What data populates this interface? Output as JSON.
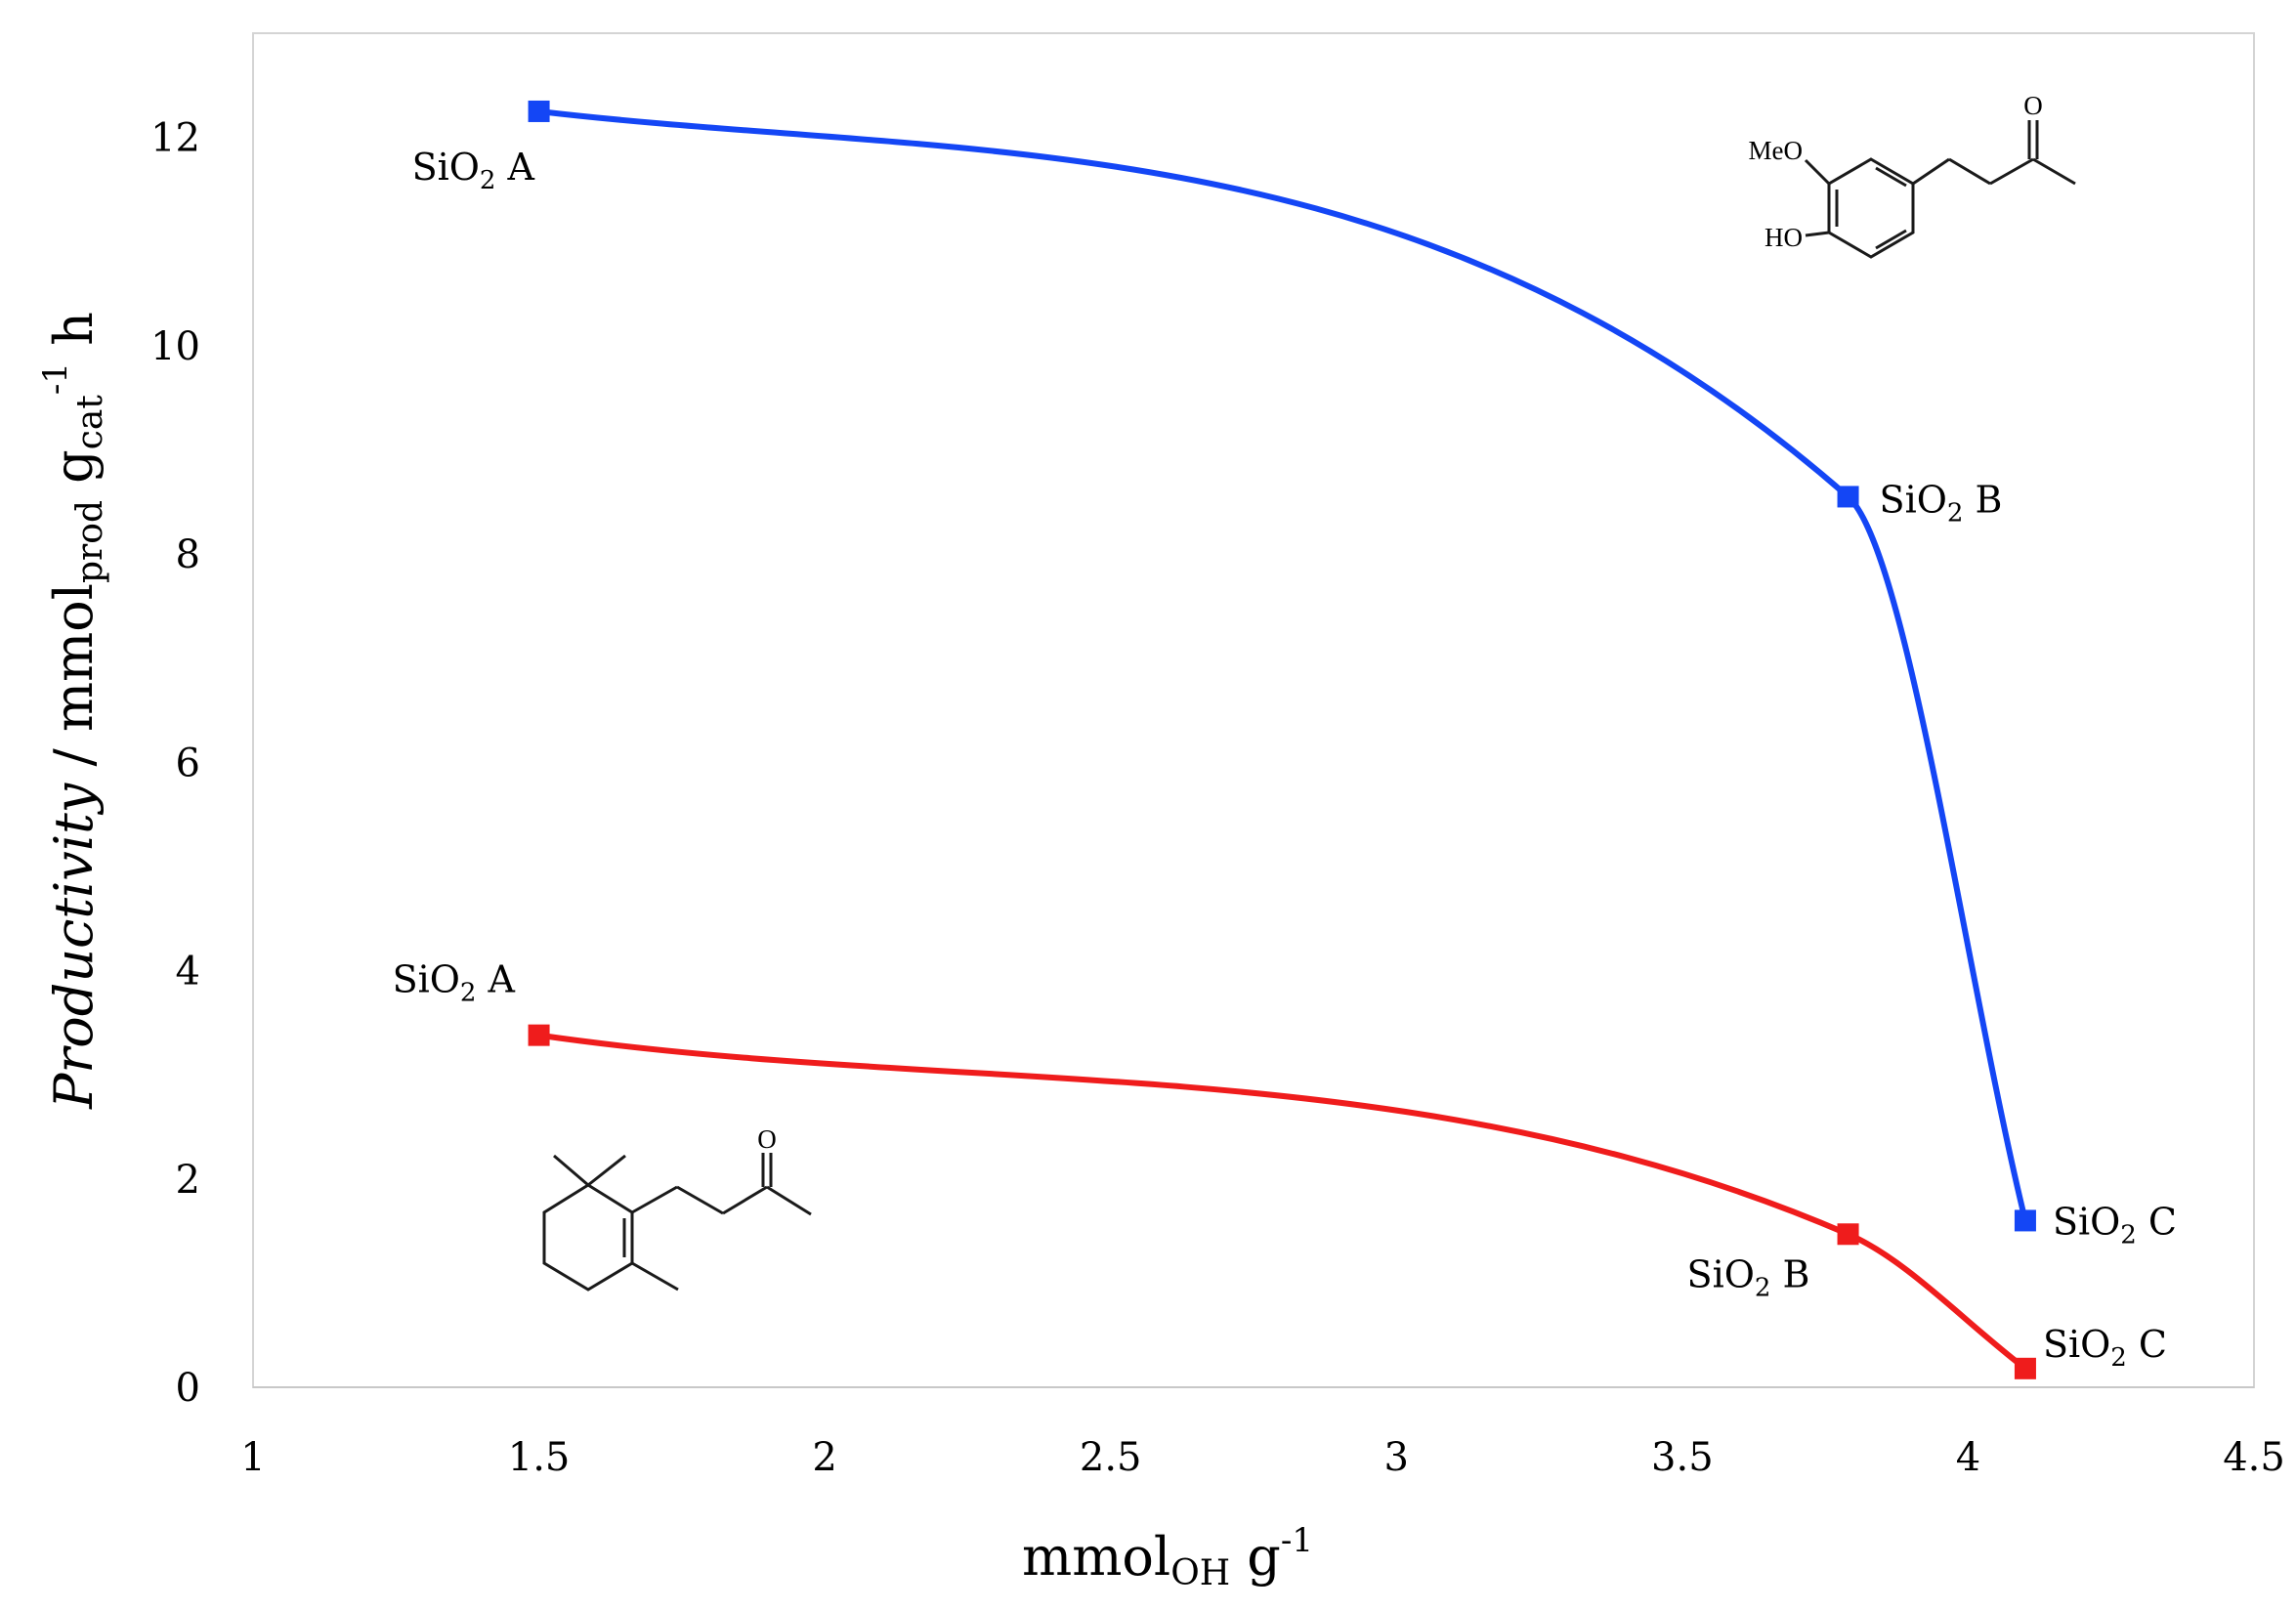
{
  "chart_data": {
    "type": "line",
    "xlabel": {
      "main": "mmol",
      "sub": "OH",
      "unit": " g",
      "sup": "-1"
    },
    "ylabel": {
      "italic": "Productivity",
      "sep": " / ",
      "mmol": "mmol",
      "mmol_sub": "prod",
      "g": " g",
      "g_sub": "cat",
      "g_sup": "-1",
      "h": " h"
    },
    "xlim": [
      1,
      4.5
    ],
    "ylim": [
      0,
      13
    ],
    "xticks": [
      "1",
      "1.5",
      "2",
      "2.5",
      "3",
      "3.5",
      "4",
      "4.5"
    ],
    "yticks": [
      "0",
      "2",
      "4",
      "6",
      "8",
      "10",
      "12"
    ],
    "grid": false,
    "legend": "none",
    "series": [
      {
        "color": "#1446f5",
        "x": [
          1.5,
          3.79,
          4.1
        ],
        "y": [
          12.25,
          8.55,
          1.6
        ],
        "labels": [
          "SiO2 A",
          "SiO2 B",
          "SiO2 C"
        ]
      },
      {
        "color": "#ef1c1c",
        "x": [
          1.5,
          3.79,
          4.1
        ],
        "y": [
          3.38,
          1.47,
          0.18
        ],
        "labels": [
          "SiO2 A",
          "SiO2 B",
          "SiO2 C"
        ]
      }
    ]
  },
  "molecules": {
    "zingerone": {
      "meo": "MeO",
      "ho": "HO",
      "oxo": "O"
    },
    "dihydro_ionone": {
      "oxo": "O"
    }
  }
}
